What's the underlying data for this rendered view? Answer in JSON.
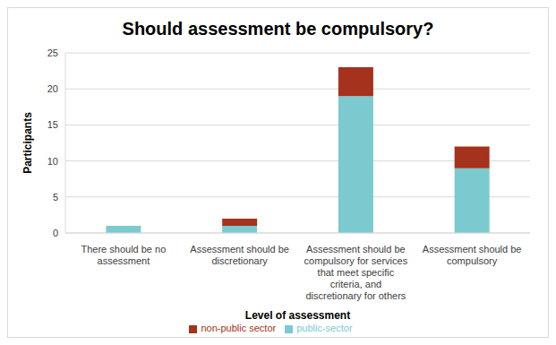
{
  "chart_data": {
    "type": "bar",
    "title": "Should assessment be compulsory?",
    "x_label": "Level of assessment",
    "y_label": "Participants",
    "categories": [
      "There should be no assessment",
      "Assessment should be discretionary",
      "Assessment should be compulsory for services that meet specific criteria, and discretionary for others",
      "Assessment should be compulsory"
    ],
    "series": [
      {
        "name": "public-sector",
        "color": "#7bcad0",
        "values": [
          1,
          1,
          19,
          9
        ]
      },
      {
        "name": "non-public sector",
        "color": "#a5321c",
        "values": [
          0,
          1,
          4,
          3
        ]
      }
    ],
    "ylim": [
      0,
      25
    ],
    "yticks": [
      0,
      5,
      10,
      15,
      20,
      25
    ],
    "grid": true,
    "stacked": true,
    "legend": "bottom"
  }
}
